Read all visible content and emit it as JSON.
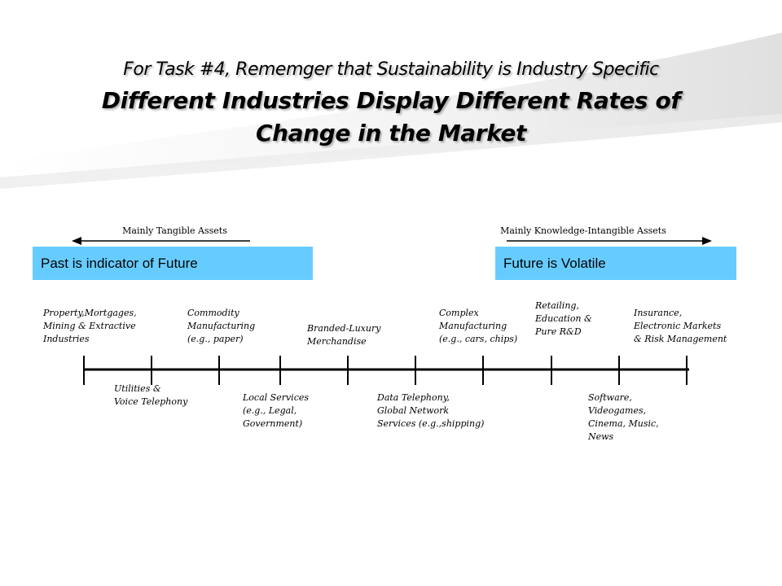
{
  "colors": {
    "band": "#66ccff",
    "swoosh": "#e6e6e6",
    "line": "#000000"
  },
  "title": {
    "line1": "For Task #4, Rememger that Sustainability is Industry Specific",
    "line2": "Different Industries Display Different Rates of",
    "line3": "Change in the Market"
  },
  "arrows": {
    "left_label": "Mainly Tangible Assets",
    "right_label": "Mainly Knowledge-Intangible Assets"
  },
  "bands": {
    "left": "Past is indicator of Future",
    "right": "Future is Volatile"
  },
  "industries_above": [
    {
      "lines": [
        "Property,Mortgages,",
        "Mining & Extractive",
        "Industries"
      ]
    },
    {
      "lines": [
        "Commodity",
        "Manufacturing",
        "(e.g., paper)"
      ]
    },
    {
      "lines": [
        "Branded-Luxury",
        "Merchandise"
      ]
    },
    {
      "lines": [
        "Complex",
        "Manufacturing",
        "(e.g., cars, chips)"
      ]
    },
    {
      "lines": [
        "Retailing,",
        "Education &",
        "Pure R&D"
      ]
    },
    {
      "lines": [
        "Insurance,",
        "Electronic Markets",
        "& Risk Management"
      ]
    }
  ],
  "industries_below": [
    {
      "lines": [
        "Utilities &",
        "Voice Telephony"
      ]
    },
    {
      "lines": [
        "Local Services",
        "(e.g., Legal,",
        "Government)"
      ]
    },
    {
      "lines": [
        "Data Telephony,",
        "Global Network",
        "Services (e.g.,shipping)"
      ]
    },
    {
      "lines": [
        "Software,",
        "Videogames,",
        "Cinema, Music,",
        "News"
      ]
    }
  ]
}
